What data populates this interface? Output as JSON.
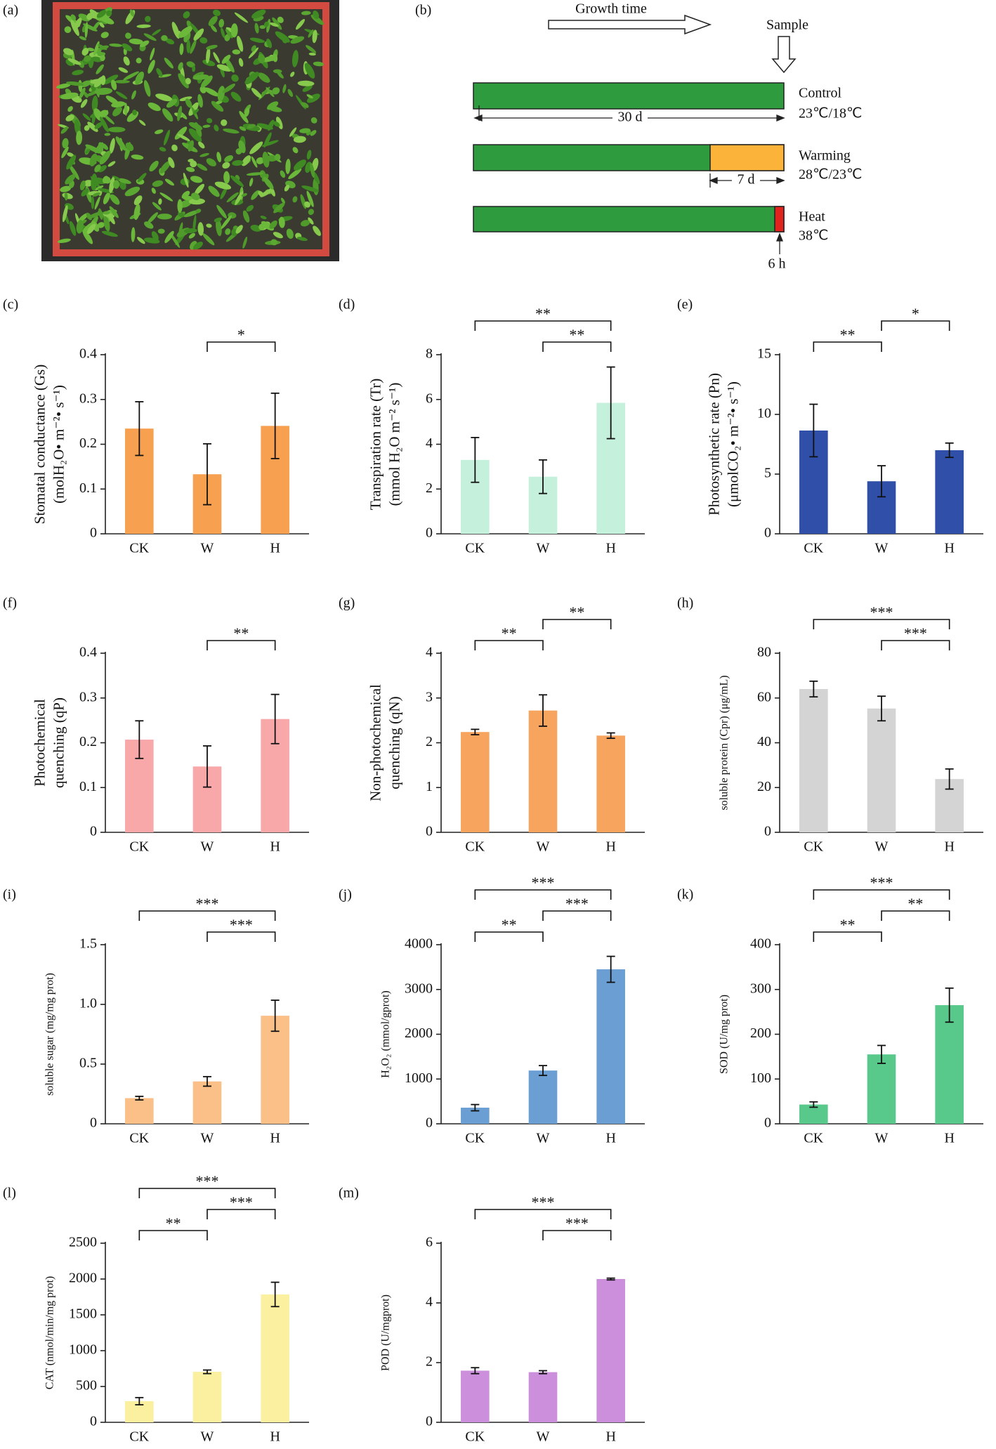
{
  "panels": {
    "a": {
      "label": "(a)"
    },
    "b": {
      "label": "(b)",
      "growth": "Growth time",
      "sample": "Sample",
      "control": "Control",
      "control_temp": "23℃/18℃",
      "duration_control": "30 d",
      "warming": "Warming",
      "warming_temp": "28℃/23℃",
      "duration_warming": "7 d",
      "heat": "Heat",
      "heat_temp": "38℃",
      "duration_heat": "6 h"
    }
  },
  "chart_data": [
    {
      "type": "bar",
      "label": "(c)",
      "ylabel": [
        "Stomatal conductance (Gs)",
        "(molH₂O• m⁻²• s⁻¹)"
      ],
      "categories": [
        "CK",
        "W",
        "H"
      ],
      "values": [
        0.235,
        0.133,
        0.241
      ],
      "errors": [
        0.06,
        0.068,
        0.073
      ],
      "color": "#f7a04f",
      "ylim": [
        0,
        0.4
      ],
      "yticks": [
        0,
        0.1,
        0.2,
        0.3,
        0.4
      ],
      "comparisons": [
        {
          "groups": [
            "W",
            "H"
          ],
          "label": "*"
        }
      ]
    },
    {
      "type": "bar",
      "label": "(d)",
      "ylabel": [
        "Transpiration rate (Tr)",
        "(mmol H₂O m⁻² s⁻¹)"
      ],
      "categories": [
        "CK",
        "W",
        "H"
      ],
      "values": [
        3.3,
        2.55,
        5.85
      ],
      "errors": [
        1.0,
        0.75,
        1.6
      ],
      "color": "#c5f0dc",
      "ylim": [
        0,
        8
      ],
      "yticks": [
        0,
        2,
        4,
        6,
        8
      ],
      "comparisons": [
        {
          "groups": [
            "W",
            "H"
          ],
          "label": "**"
        },
        {
          "groups": [
            "CK",
            "H"
          ],
          "label": "**"
        }
      ]
    },
    {
      "type": "bar",
      "label": "(e)",
      "ylabel": [
        "Photosynthetic rate (Pn)",
        "(μmolCO₂• m⁻²• s⁻¹)"
      ],
      "categories": [
        "CK",
        "W",
        "H"
      ],
      "values": [
        8.65,
        4.4,
        7.0
      ],
      "errors": [
        2.2,
        1.3,
        0.6
      ],
      "color": "#2f4fa8",
      "ylim": [
        0,
        15
      ],
      "yticks": [
        0,
        5,
        10,
        15
      ],
      "comparisons": [
        {
          "groups": [
            "CK",
            "W"
          ],
          "label": "**"
        },
        {
          "groups": [
            "W",
            "H"
          ],
          "label": "*"
        }
      ]
    },
    {
      "type": "bar",
      "label": "(f)",
      "ylabel": [
        "Photochemical",
        "quenching (qP)"
      ],
      "categories": [
        "CK",
        "W",
        "H"
      ],
      "values": [
        0.207,
        0.147,
        0.253
      ],
      "errors": [
        0.042,
        0.046,
        0.055
      ],
      "color": "#f9a8aa",
      "ylim": [
        0,
        0.4
      ],
      "yticks": [
        0,
        0.1,
        0.2,
        0.3,
        0.4
      ],
      "comparisons": [
        {
          "groups": [
            "W",
            "H"
          ],
          "label": "**"
        }
      ]
    },
    {
      "type": "bar",
      "label": "(g)",
      "ylabel": [
        "Non-photochemical",
        "quenching (qN)"
      ],
      "categories": [
        "CK",
        "W",
        "H"
      ],
      "values": [
        2.24,
        2.72,
        2.16
      ],
      "errors": [
        0.06,
        0.35,
        0.06
      ],
      "color": "#f7a45e",
      "ylim": [
        0,
        4
      ],
      "yticks": [
        0,
        1,
        2,
        3,
        4
      ],
      "comparisons": [
        {
          "groups": [
            "CK",
            "W"
          ],
          "label": "**"
        },
        {
          "groups": [
            "W",
            "H"
          ],
          "label": "**"
        }
      ]
    },
    {
      "type": "bar",
      "label": "(h)",
      "ylabel": [
        "soluble protein (Cpr) (μg/mL)"
      ],
      "categories": [
        "CK",
        "W",
        "H"
      ],
      "values": [
        64,
        55.3,
        23.8
      ],
      "errors": [
        3.5,
        5.5,
        4.5
      ],
      "color": "#d4d4d4",
      "ylim": [
        0,
        80
      ],
      "yticks": [
        0,
        20,
        40,
        60,
        80
      ],
      "comparisons": [
        {
          "groups": [
            "W",
            "H"
          ],
          "label": "***"
        },
        {
          "groups": [
            "CK",
            "H"
          ],
          "label": "***"
        }
      ]
    },
    {
      "type": "bar",
      "label": "(i)",
      "ylabel": [
        "soluble sugar (mg/mg prot)"
      ],
      "categories": [
        "CK",
        "W",
        "H"
      ],
      "values": [
        0.215,
        0.355,
        0.905
      ],
      "errors": [
        0.015,
        0.04,
        0.13
      ],
      "color": "#fbbf88",
      "ylim": [
        0,
        1.5
      ],
      "yticks": [
        0,
        0.5,
        {
          "value": 1,
          "label": "1.0"
        },
        1.5
      ],
      "comparisons": [
        {
          "groups": [
            "W",
            "H"
          ],
          "label": "***"
        },
        {
          "groups": [
            "CK",
            "H"
          ],
          "label": "***"
        }
      ]
    },
    {
      "type": "bar",
      "label": "(j)",
      "ylabel": [
        "H₂O₂ (mmol/gprot)"
      ],
      "categories": [
        "CK",
        "W",
        "H"
      ],
      "values": [
        360,
        1190,
        3450
      ],
      "errors": [
        70,
        110,
        290
      ],
      "color": "#6b9fd4",
      "ylim": [
        0,
        4000
      ],
      "yticks": [
        0,
        1000,
        2000,
        3000,
        4000
      ],
      "comparisons": [
        {
          "groups": [
            "CK",
            "W"
          ],
          "label": "**"
        },
        {
          "groups": [
            "W",
            "H"
          ],
          "label": "***"
        },
        {
          "groups": [
            "CK",
            "H"
          ],
          "label": "***"
        }
      ]
    },
    {
      "type": "bar",
      "label": "(k)",
      "ylabel": [
        "SOD (U/mg prot)"
      ],
      "categories": [
        "CK",
        "W",
        "H"
      ],
      "values": [
        43,
        155,
        265
      ],
      "errors": [
        6,
        20,
        38
      ],
      "color": "#58c98a",
      "ylim": [
        0,
        400
      ],
      "yticks": [
        0,
        100,
        200,
        300,
        400
      ],
      "comparisons": [
        {
          "groups": [
            "CK",
            "W"
          ],
          "label": "**"
        },
        {
          "groups": [
            "W",
            "H"
          ],
          "label": "**"
        },
        {
          "groups": [
            "CK",
            "H"
          ],
          "label": "***"
        }
      ]
    },
    {
      "type": "bar",
      "label": "(l)",
      "ylabel": [
        "CAT (nmol/min/mg prot)"
      ],
      "categories": [
        "CK",
        "W",
        "H"
      ],
      "values": [
        295,
        705,
        1785
      ],
      "errors": [
        50,
        25,
        170
      ],
      "color": "#faf0a0",
      "ylim": [
        0,
        2500
      ],
      "yticks": [
        0,
        500,
        1000,
        1500,
        2000,
        2500
      ],
      "comparisons": [
        {
          "groups": [
            "CK",
            "W"
          ],
          "label": "**"
        },
        {
          "groups": [
            "W",
            "H"
          ],
          "label": "***"
        },
        {
          "groups": [
            "CK",
            "H"
          ],
          "label": "***"
        }
      ]
    },
    {
      "type": "bar",
      "label": "(m)",
      "ylabel": [
        "POD (U/mgprot)"
      ],
      "categories": [
        "CK",
        "W",
        "H"
      ],
      "values": [
        1.73,
        1.68,
        4.8
      ],
      "errors": [
        0.1,
        0.05,
        0.03
      ],
      "color": "#cc8fdb",
      "ylim": [
        0,
        6
      ],
      "yticks": [
        0,
        2,
        4,
        6
      ],
      "comparisons": [
        {
          "groups": [
            "W",
            "H"
          ],
          "label": "***"
        },
        {
          "groups": [
            "CK",
            "H"
          ],
          "label": "***"
        }
      ]
    }
  ]
}
